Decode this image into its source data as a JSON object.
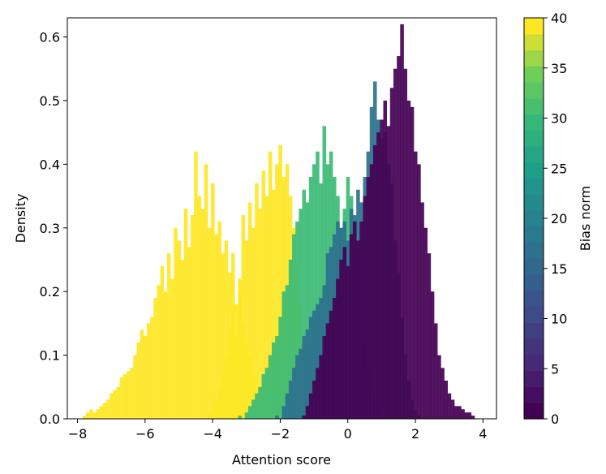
{
  "chart_data": {
    "type": "bar",
    "subtype": "overlapping-density-histograms",
    "title": "",
    "xlabel": "Attention score",
    "ylabel": "Density",
    "xlim": [
      -8.3,
      4.4
    ],
    "ylim": [
      0,
      0.63
    ],
    "xticks": [
      -8,
      -6,
      -4,
      -2,
      0,
      2,
      4
    ],
    "xtick_labels": [
      "−8",
      "−6",
      "−4",
      "−2",
      "0",
      "2",
      "4"
    ],
    "yticks": [
      0.0,
      0.1,
      0.2,
      0.3,
      0.4,
      0.5,
      0.6
    ],
    "ytick_labels": [
      "0.0",
      "0.1",
      "0.2",
      "0.3",
      "0.4",
      "0.5",
      "0.6"
    ],
    "grid": false,
    "legend": "none",
    "colorbar": {
      "label": "Bias norm",
      "min": 0,
      "max": 40,
      "ticks": [
        0,
        5,
        10,
        15,
        20,
        25,
        30,
        35,
        40
      ],
      "tick_labels": [
        "0",
        "5",
        "10",
        "15",
        "20",
        "25",
        "30",
        "35",
        "40"
      ],
      "levels": 25,
      "colormap": "viridis"
    },
    "series": [
      {
        "color": "#fde725",
        "values": [
          [
            -7.8,
            0.005
          ],
          [
            -7.7,
            0.01
          ],
          [
            -7.6,
            0.015
          ],
          [
            -7.5,
            0.01
          ],
          [
            -7.4,
            0.015
          ],
          [
            -7.3,
            0.02
          ],
          [
            -7.2,
            0.025
          ],
          [
            -7.1,
            0.03
          ],
          [
            -7.0,
            0.04
          ],
          [
            -6.9,
            0.045
          ],
          [
            -6.8,
            0.05
          ],
          [
            -6.7,
            0.065
          ],
          [
            -6.6,
            0.07
          ],
          [
            -6.5,
            0.075
          ],
          [
            -6.4,
            0.08
          ],
          [
            -6.3,
            0.1
          ],
          [
            -6.2,
            0.12
          ],
          [
            -6.1,
            0.14
          ],
          [
            -6.0,
            0.13
          ],
          [
            -5.9,
            0.15
          ],
          [
            -5.8,
            0.16
          ],
          [
            -5.7,
            0.19
          ],
          [
            -5.6,
            0.21
          ],
          [
            -5.5,
            0.24
          ],
          [
            -5.4,
            0.2
          ],
          [
            -5.3,
            0.26
          ],
          [
            -5.2,
            0.22
          ],
          [
            -5.1,
            0.3
          ],
          [
            -5.0,
            0.28
          ],
          [
            -4.9,
            0.25
          ],
          [
            -4.8,
            0.33
          ],
          [
            -4.7,
            0.27
          ],
          [
            -4.6,
            0.32
          ],
          [
            -4.5,
            0.42
          ],
          [
            -4.4,
            0.35
          ],
          [
            -4.3,
            0.33
          ],
          [
            -4.2,
            0.4
          ],
          [
            -4.1,
            0.3
          ],
          [
            -4.0,
            0.37
          ],
          [
            -3.9,
            0.29
          ],
          [
            -3.8,
            0.31
          ],
          [
            -3.7,
            0.26
          ],
          [
            -3.6,
            0.28
          ],
          [
            -3.5,
            0.23
          ],
          [
            -3.4,
            0.26
          ],
          [
            -3.3,
            0.18
          ],
          [
            -3.2,
            0.2
          ],
          [
            -3.1,
            0.15
          ],
          [
            -3.0,
            0.12
          ],
          [
            -2.9,
            0.1
          ],
          [
            -2.8,
            0.07
          ],
          [
            -2.7,
            0.05
          ],
          [
            -2.6,
            0.03
          ],
          [
            -2.5,
            0.02
          ]
        ]
      },
      {
        "color": "#fde725",
        "values": [
          [
            -4.1,
            0.01
          ],
          [
            -4.0,
            0.02
          ],
          [
            -3.9,
            0.03
          ],
          [
            -3.8,
            0.05
          ],
          [
            -3.7,
            0.07
          ],
          [
            -3.6,
            0.1
          ],
          [
            -3.5,
            0.14
          ],
          [
            -3.4,
            0.18
          ],
          [
            -3.3,
            0.13
          ],
          [
            -3.2,
            0.22
          ],
          [
            -3.1,
            0.32
          ],
          [
            -3.0,
            0.28
          ],
          [
            -2.9,
            0.34
          ],
          [
            -2.8,
            0.3
          ],
          [
            -2.7,
            0.37
          ],
          [
            -2.6,
            0.33
          ],
          [
            -2.5,
            0.39
          ],
          [
            -2.4,
            0.35
          ],
          [
            -2.3,
            0.42
          ],
          [
            -2.2,
            0.36
          ],
          [
            -2.1,
            0.4
          ],
          [
            -2.0,
            0.43
          ],
          [
            -1.9,
            0.38
          ],
          [
            -1.8,
            0.4
          ],
          [
            -1.7,
            0.35
          ],
          [
            -1.6,
            0.3
          ],
          [
            -1.5,
            0.24
          ],
          [
            -1.4,
            0.18
          ],
          [
            -1.3,
            0.13
          ],
          [
            -1.2,
            0.09
          ],
          [
            -1.1,
            0.06
          ],
          [
            -1.0,
            0.03
          ],
          [
            -0.9,
            0.015
          ]
        ]
      },
      {
        "color": "#3cbb75",
        "values": [
          [
            -3.2,
            0.005
          ],
          [
            -3.0,
            0.01
          ],
          [
            -2.9,
            0.02
          ],
          [
            -2.8,
            0.03
          ],
          [
            -2.7,
            0.04
          ],
          [
            -2.6,
            0.05
          ],
          [
            -2.5,
            0.07
          ],
          [
            -2.4,
            0.08
          ],
          [
            -2.3,
            0.1
          ],
          [
            -2.2,
            0.12
          ],
          [
            -2.1,
            0.13
          ],
          [
            -2.0,
            0.16
          ],
          [
            -1.9,
            0.2
          ],
          [
            -1.8,
            0.21
          ],
          [
            -1.7,
            0.25
          ],
          [
            -1.6,
            0.29
          ],
          [
            -1.5,
            0.31
          ],
          [
            -1.4,
            0.33
          ],
          [
            -1.3,
            0.36
          ],
          [
            -1.2,
            0.34
          ],
          [
            -1.1,
            0.38
          ],
          [
            -1.0,
            0.4
          ],
          [
            -0.9,
            0.42
          ],
          [
            -0.8,
            0.37
          ],
          [
            -0.7,
            0.46
          ],
          [
            -0.6,
            0.4
          ],
          [
            -0.5,
            0.42
          ],
          [
            -0.4,
            0.38
          ],
          [
            -0.3,
            0.35
          ],
          [
            -0.2,
            0.3
          ],
          [
            -0.1,
            0.33
          ],
          [
            0.0,
            0.38
          ],
          [
            0.1,
            0.35
          ],
          [
            0.2,
            0.27
          ],
          [
            0.3,
            0.22
          ],
          [
            0.4,
            0.16
          ],
          [
            0.5,
            0.12
          ],
          [
            0.6,
            0.08
          ],
          [
            0.7,
            0.05
          ],
          [
            0.8,
            0.03
          ],
          [
            0.9,
            0.01
          ]
        ]
      },
      {
        "color": "#2c718e",
        "values": [
          [
            -2.1,
            0.005
          ],
          [
            -1.9,
            0.02
          ],
          [
            -1.8,
            0.04
          ],
          [
            -1.7,
            0.06
          ],
          [
            -1.6,
            0.08
          ],
          [
            -1.5,
            0.1
          ],
          [
            -1.4,
            0.11
          ],
          [
            -1.3,
            0.13
          ],
          [
            -1.2,
            0.14
          ],
          [
            -1.1,
            0.16
          ],
          [
            -1.0,
            0.17
          ],
          [
            -0.9,
            0.18
          ],
          [
            -0.8,
            0.19
          ],
          [
            -0.7,
            0.21
          ],
          [
            -0.6,
            0.26
          ],
          [
            -0.5,
            0.27
          ],
          [
            -0.4,
            0.29
          ],
          [
            -0.3,
            0.31
          ],
          [
            -0.2,
            0.3
          ],
          [
            -0.1,
            0.31
          ],
          [
            0.0,
            0.28
          ],
          [
            0.1,
            0.33
          ],
          [
            0.2,
            0.32
          ],
          [
            0.3,
            0.36
          ],
          [
            0.4,
            0.34
          ],
          [
            0.5,
            0.38
          ],
          [
            0.6,
            0.42
          ],
          [
            0.7,
            0.49
          ],
          [
            0.8,
            0.53
          ],
          [
            0.9,
            0.47
          ],
          [
            1.0,
            0.44
          ],
          [
            1.1,
            0.45
          ],
          [
            1.2,
            0.4
          ],
          [
            1.3,
            0.37
          ],
          [
            1.4,
            0.28
          ],
          [
            1.5,
            0.23
          ],
          [
            1.6,
            0.16
          ],
          [
            1.7,
            0.1
          ],
          [
            1.8,
            0.06
          ],
          [
            1.9,
            0.03
          ],
          [
            2.0,
            0.015
          ],
          [
            2.1,
            0.005
          ]
        ]
      },
      {
        "color": "#440154",
        "values": [
          [
            -1.3,
            0.005
          ],
          [
            -1.2,
            0.02
          ],
          [
            -1.1,
            0.04
          ],
          [
            -1.0,
            0.06
          ],
          [
            -0.9,
            0.08
          ],
          [
            -0.8,
            0.1
          ],
          [
            -0.7,
            0.13
          ],
          [
            -0.6,
            0.15
          ],
          [
            -0.5,
            0.17
          ],
          [
            -0.4,
            0.19
          ],
          [
            -0.3,
            0.22
          ],
          [
            -0.2,
            0.25
          ],
          [
            -0.1,
            0.27
          ],
          [
            0.0,
            0.24
          ],
          [
            0.1,
            0.29
          ],
          [
            0.2,
            0.31
          ],
          [
            0.3,
            0.28
          ],
          [
            0.4,
            0.31
          ],
          [
            0.5,
            0.35
          ],
          [
            0.6,
            0.38
          ],
          [
            0.7,
            0.4
          ],
          [
            0.8,
            0.43
          ],
          [
            0.9,
            0.45
          ],
          [
            1.0,
            0.47
          ],
          [
            1.1,
            0.5
          ],
          [
            1.2,
            0.46
          ],
          [
            1.3,
            0.52
          ],
          [
            1.4,
            0.55
          ],
          [
            1.5,
            0.57
          ],
          [
            1.6,
            0.62
          ],
          [
            1.7,
            0.55
          ],
          [
            1.8,
            0.5
          ],
          [
            1.9,
            0.49
          ],
          [
            2.0,
            0.42
          ],
          [
            2.1,
            0.4
          ],
          [
            2.2,
            0.34
          ],
          [
            2.3,
            0.3
          ],
          [
            2.4,
            0.26
          ],
          [
            2.5,
            0.2
          ],
          [
            2.6,
            0.15
          ],
          [
            2.7,
            0.1
          ],
          [
            2.8,
            0.08
          ],
          [
            2.9,
            0.06
          ],
          [
            3.0,
            0.04
          ],
          [
            3.1,
            0.03
          ],
          [
            3.2,
            0.02
          ],
          [
            3.3,
            0.02
          ],
          [
            3.4,
            0.015
          ],
          [
            3.5,
            0.01
          ],
          [
            3.6,
            0.01
          ],
          [
            3.7,
            0.005
          ]
        ]
      }
    ]
  }
}
